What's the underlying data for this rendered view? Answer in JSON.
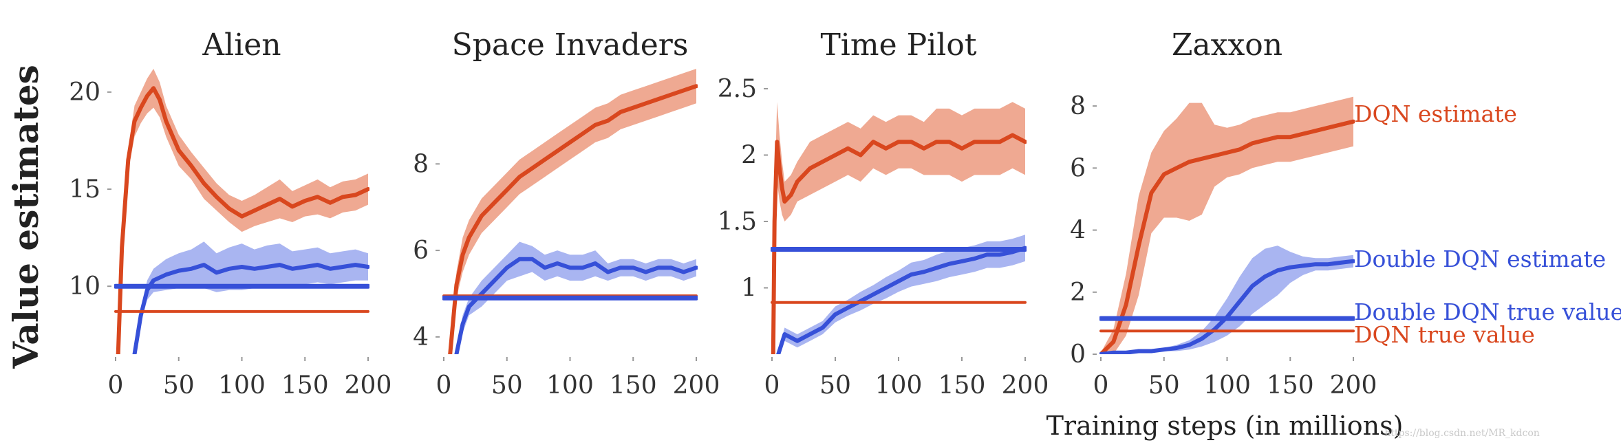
{
  "figure": {
    "ylabel": "Value estimates",
    "xlabel": "Training steps (in millions)",
    "watermark": "https://blog.csdn.net/MR_kdcon"
  },
  "colors": {
    "dqn": "#d9471e",
    "dqn_band": "#ec9a7f",
    "ddqn": "#3650d8",
    "ddqn_band": "#9aa8ee"
  },
  "legend": {
    "dqn_estimate": "DQN estimate",
    "ddqn_estimate": "Double DQN estimate",
    "ddqn_true": "Double DQN true value",
    "dqn_true": "DQN true value"
  },
  "chart_data": [
    {
      "type": "line",
      "title": "Alien",
      "xlim": [
        0,
        200
      ],
      "ylim": [
        6.5,
        21.2
      ],
      "xticks": [
        0,
        50,
        100,
        150,
        200
      ],
      "yticks": [
        10,
        15,
        20
      ],
      "series": [
        {
          "name": "DQN estimate",
          "role": "dqn_estimate",
          "x": [
            2,
            5,
            10,
            15,
            20,
            25,
            30,
            35,
            40,
            50,
            60,
            70,
            80,
            90,
            100,
            110,
            120,
            130,
            140,
            150,
            160,
            170,
            180,
            190,
            200
          ],
          "y": [
            6.5,
            12.0,
            16.5,
            18.5,
            19.2,
            19.8,
            20.2,
            19.6,
            18.5,
            17.0,
            16.2,
            15.3,
            14.6,
            14.0,
            13.6,
            13.9,
            14.2,
            14.5,
            14.1,
            14.4,
            14.6,
            14.3,
            14.6,
            14.7,
            15.0
          ],
          "band": [
            0.2,
            0.4,
            0.6,
            0.8,
            0.8,
            0.9,
            1.0,
            0.9,
            0.8,
            0.8,
            0.7,
            0.8,
            0.7,
            0.7,
            0.8,
            0.8,
            0.9,
            1.0,
            0.8,
            0.8,
            0.9,
            0.8,
            0.8,
            0.8,
            0.8
          ]
        },
        {
          "name": "Double DQN estimate",
          "role": "ddqn_estimate",
          "x": [
            15,
            20,
            25,
            30,
            40,
            50,
            60,
            70,
            80,
            90,
            100,
            110,
            120,
            130,
            140,
            150,
            160,
            170,
            180,
            190,
            200
          ],
          "y": [
            6.5,
            8.5,
            9.8,
            10.3,
            10.6,
            10.8,
            10.9,
            11.1,
            10.7,
            10.9,
            11.0,
            10.9,
            11.0,
            11.1,
            10.9,
            11.0,
            11.1,
            10.9,
            11.0,
            11.1,
            11.0
          ],
          "band": [
            0.2,
            0.4,
            0.5,
            0.6,
            0.8,
            0.9,
            1.0,
            1.2,
            1.0,
            1.1,
            1.2,
            1.0,
            1.1,
            1.1,
            0.9,
            0.9,
            0.9,
            0.8,
            0.8,
            0.8,
            0.7
          ]
        },
        {
          "name": "DQN true value",
          "role": "dqn_true",
          "x": [
            0,
            200
          ],
          "y": [
            8.7,
            8.7
          ]
        },
        {
          "name": "Double DQN true value",
          "role": "ddqn_true",
          "x": [
            0,
            200
          ],
          "y": [
            10.0,
            10.0
          ]
        }
      ]
    },
    {
      "type": "line",
      "title": "Space Invaders",
      "xlim": [
        0,
        200
      ],
      "ylim": [
        3.6,
        10.2
      ],
      "xticks": [
        0,
        50,
        100,
        150,
        200
      ],
      "yticks": [
        4,
        6,
        8
      ],
      "series": [
        {
          "name": "DQN estimate",
          "role": "dqn_estimate",
          "x": [
            5,
            10,
            15,
            20,
            30,
            40,
            50,
            60,
            70,
            80,
            90,
            100,
            110,
            120,
            130,
            140,
            150,
            160,
            170,
            180,
            190,
            200
          ],
          "y": [
            3.6,
            5.2,
            5.9,
            6.3,
            6.8,
            7.1,
            7.4,
            7.7,
            7.9,
            8.1,
            8.3,
            8.5,
            8.7,
            8.9,
            9.0,
            9.2,
            9.3,
            9.4,
            9.5,
            9.6,
            9.7,
            9.8
          ],
          "band": [
            0.2,
            0.3,
            0.4,
            0.4,
            0.4,
            0.4,
            0.4,
            0.4,
            0.4,
            0.4,
            0.4,
            0.4,
            0.4,
            0.4,
            0.4,
            0.4,
            0.4,
            0.4,
            0.4,
            0.4,
            0.4,
            0.4
          ]
        },
        {
          "name": "Double DQN estimate",
          "role": "ddqn_estimate",
          "x": [
            10,
            15,
            20,
            30,
            40,
            50,
            60,
            70,
            80,
            90,
            100,
            110,
            120,
            130,
            140,
            150,
            160,
            170,
            180,
            190,
            200
          ],
          "y": [
            3.6,
            4.3,
            4.7,
            5.0,
            5.3,
            5.6,
            5.8,
            5.8,
            5.6,
            5.7,
            5.6,
            5.6,
            5.7,
            5.5,
            5.6,
            5.6,
            5.5,
            5.6,
            5.6,
            5.5,
            5.6
          ],
          "band": [
            0.1,
            0.2,
            0.2,
            0.3,
            0.3,
            0.3,
            0.4,
            0.3,
            0.3,
            0.3,
            0.3,
            0.3,
            0.3,
            0.2,
            0.2,
            0.2,
            0.2,
            0.2,
            0.2,
            0.2,
            0.2
          ]
        },
        {
          "name": "DQN true value",
          "role": "dqn_true",
          "x": [
            0,
            200
          ],
          "y": [
            4.95,
            4.95
          ]
        },
        {
          "name": "Double DQN true value",
          "role": "ddqn_true",
          "x": [
            0,
            200
          ],
          "y": [
            4.9,
            4.9
          ]
        }
      ]
    },
    {
      "type": "line",
      "title": "Time Pilot",
      "xlim": [
        0,
        200
      ],
      "ylim": [
        0.5,
        2.65
      ],
      "xticks": [
        0,
        50,
        100,
        150,
        200
      ],
      "yticks": [
        1.0,
        1.5,
        2.0,
        2.5
      ],
      "series": [
        {
          "name": "DQN estimate",
          "role": "dqn_estimate",
          "x": [
            1,
            2,
            4,
            6,
            8,
            10,
            15,
            20,
            30,
            40,
            50,
            60,
            70,
            80,
            90,
            100,
            110,
            120,
            130,
            140,
            150,
            160,
            170,
            180,
            190,
            200
          ],
          "y": [
            0.5,
            1.5,
            2.1,
            1.9,
            1.75,
            1.65,
            1.7,
            1.8,
            1.9,
            1.95,
            2.0,
            2.05,
            2.0,
            2.1,
            2.05,
            2.1,
            2.1,
            2.05,
            2.1,
            2.1,
            2.05,
            2.1,
            2.1,
            2.1,
            2.15,
            2.1
          ],
          "band": [
            0.05,
            0.2,
            0.3,
            0.25,
            0.2,
            0.15,
            0.15,
            0.15,
            0.2,
            0.2,
            0.2,
            0.2,
            0.2,
            0.2,
            0.2,
            0.2,
            0.2,
            0.2,
            0.25,
            0.25,
            0.25,
            0.25,
            0.25,
            0.25,
            0.25,
            0.25
          ]
        },
        {
          "name": "Double DQN estimate",
          "role": "ddqn_estimate",
          "x": [
            5,
            10,
            20,
            30,
            40,
            50,
            60,
            70,
            80,
            90,
            100,
            110,
            120,
            130,
            140,
            150,
            160,
            170,
            180,
            190,
            200
          ],
          "y": [
            0.5,
            0.65,
            0.6,
            0.65,
            0.7,
            0.8,
            0.85,
            0.9,
            0.95,
            1.0,
            1.05,
            1.1,
            1.12,
            1.15,
            1.18,
            1.2,
            1.22,
            1.25,
            1.25,
            1.27,
            1.3
          ],
          "band": [
            0.03,
            0.05,
            0.05,
            0.05,
            0.05,
            0.06,
            0.06,
            0.07,
            0.07,
            0.08,
            0.08,
            0.09,
            0.09,
            0.1,
            0.1,
            0.1,
            0.1,
            0.1,
            0.1,
            0.1,
            0.1
          ]
        },
        {
          "name": "DQN true value",
          "role": "dqn_true",
          "x": [
            0,
            200
          ],
          "y": [
            0.89,
            0.89
          ]
        },
        {
          "name": "Double DQN true value",
          "role": "ddqn_true",
          "x": [
            0,
            200
          ],
          "y": [
            1.29,
            1.29
          ]
        }
      ]
    },
    {
      "type": "line",
      "title": "Zaxxon",
      "xlim": [
        0,
        200
      ],
      "ylim": [
        0,
        9.2
      ],
      "xticks": [
        0,
        50,
        100,
        150,
        200
      ],
      "yticks": [
        0,
        2,
        4,
        6,
        8
      ],
      "series": [
        {
          "name": "DQN estimate",
          "role": "dqn_estimate",
          "x": [
            0,
            10,
            20,
            30,
            40,
            50,
            60,
            70,
            80,
            90,
            100,
            110,
            120,
            130,
            140,
            150,
            160,
            170,
            180,
            190,
            200
          ],
          "y": [
            0,
            0.4,
            1.6,
            3.5,
            5.2,
            5.8,
            6.0,
            6.2,
            6.3,
            6.4,
            6.5,
            6.6,
            6.8,
            6.9,
            7.0,
            7.0,
            7.1,
            7.2,
            7.3,
            7.4,
            7.5
          ],
          "band": [
            0.05,
            0.4,
            1.0,
            1.6,
            1.3,
            1.4,
            1.6,
            1.9,
            1.8,
            1.0,
            0.8,
            0.8,
            0.8,
            0.8,
            0.8,
            0.8,
            0.8,
            0.8,
            0.8,
            0.8,
            0.8
          ]
        },
        {
          "name": "Double DQN estimate",
          "role": "ddqn_estimate",
          "x": [
            0,
            10,
            20,
            30,
            40,
            50,
            60,
            70,
            80,
            90,
            100,
            110,
            120,
            130,
            140,
            150,
            160,
            170,
            180,
            190,
            200
          ],
          "y": [
            0,
            0.05,
            0.05,
            0.1,
            0.1,
            0.15,
            0.2,
            0.3,
            0.5,
            0.8,
            1.2,
            1.7,
            2.2,
            2.5,
            2.7,
            2.8,
            2.85,
            2.9,
            2.9,
            2.95,
            3.0
          ],
          "band": [
            0.02,
            0.03,
            0.03,
            0.05,
            0.05,
            0.05,
            0.1,
            0.15,
            0.25,
            0.4,
            0.6,
            0.8,
            0.9,
            0.9,
            0.8,
            0.5,
            0.3,
            0.2,
            0.2,
            0.2,
            0.2
          ]
        },
        {
          "name": "DQN true value",
          "role": "dqn_true",
          "x": [
            0,
            200
          ],
          "y": [
            0.75,
            0.75
          ]
        },
        {
          "name": "Double DQN true value",
          "role": "ddqn_true",
          "x": [
            0,
            200
          ],
          "y": [
            1.15,
            1.15
          ]
        }
      ]
    }
  ]
}
